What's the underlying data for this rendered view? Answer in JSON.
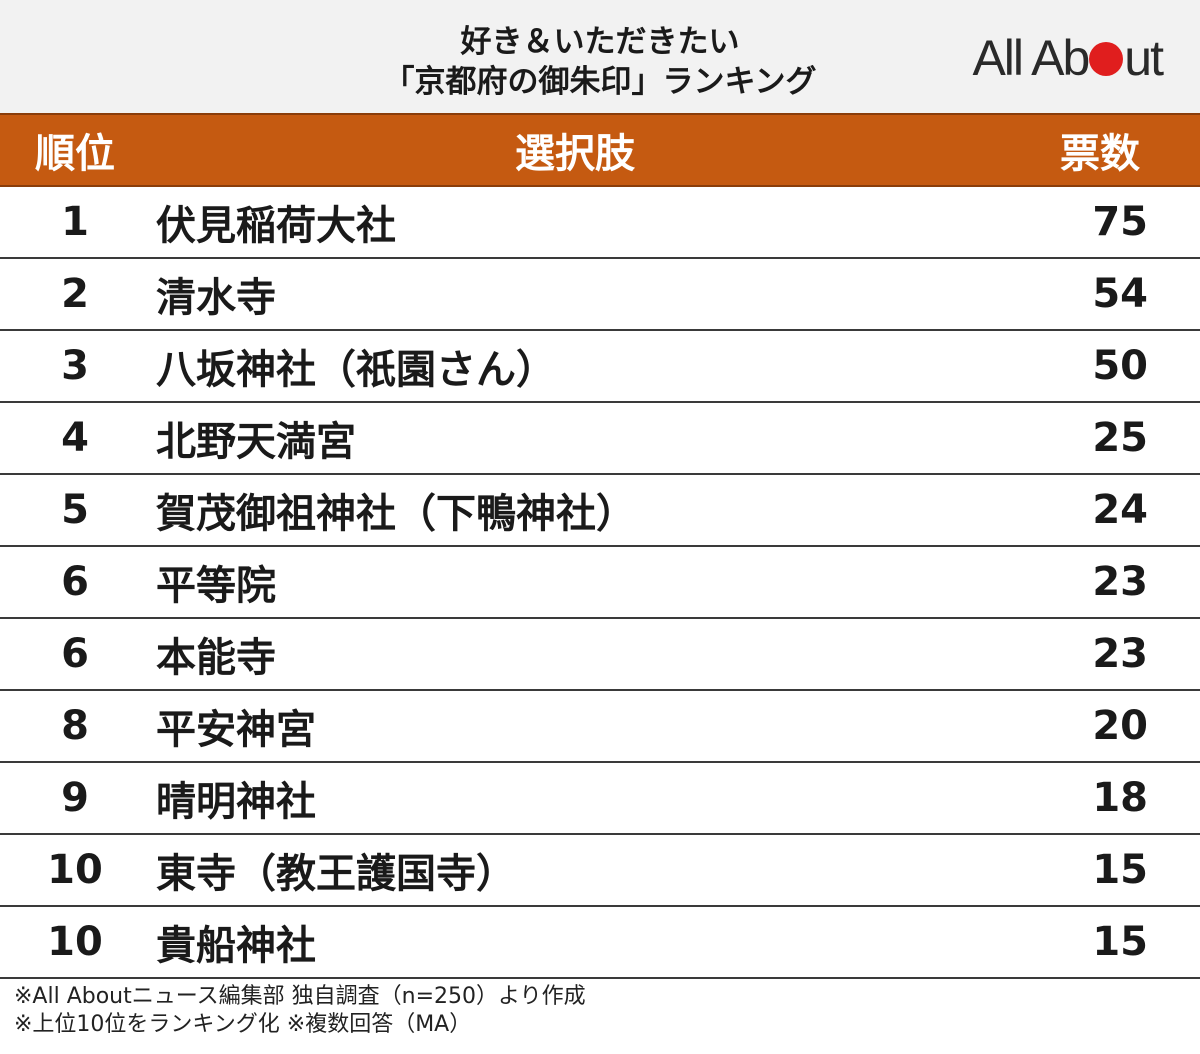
{
  "header": {
    "title_line1": "好き＆いただきたい",
    "title_line2": "「京都府の御朱印」ランキング",
    "logo_text": "All About"
  },
  "chart_data": {
    "type": "table",
    "columns": [
      "順位",
      "選択肢",
      "票数"
    ],
    "rows": [
      {
        "rank": "1",
        "name": "伏見稲荷大社",
        "votes": "75"
      },
      {
        "rank": "2",
        "name": "清水寺",
        "votes": "54"
      },
      {
        "rank": "3",
        "name": "八坂神社（祇園さん）",
        "votes": "50"
      },
      {
        "rank": "4",
        "name": "北野天満宮",
        "votes": "25"
      },
      {
        "rank": "5",
        "name": "賀茂御祖神社（下鴨神社）",
        "votes": "24"
      },
      {
        "rank": "6",
        "name": "平等院",
        "votes": "23"
      },
      {
        "rank": "6",
        "name": "本能寺",
        "votes": "23"
      },
      {
        "rank": "8",
        "name": "平安神宮",
        "votes": "20"
      },
      {
        "rank": "9",
        "name": "晴明神社",
        "votes": "18"
      },
      {
        "rank": "10",
        "name": "東寺（教王護国寺）",
        "votes": "15"
      },
      {
        "rank": "10",
        "name": "貴船神社",
        "votes": "15"
      }
    ]
  },
  "notes": {
    "line1": "※All Aboutニュース編集部 独自調査（n=250）より作成",
    "line2": "※上位10位をランキング化 ※複数回答（MA）"
  },
  "colors": {
    "header_band": "#c55a11",
    "title_background": "#f2f2f2",
    "logo_dot": "#e01e1e"
  }
}
